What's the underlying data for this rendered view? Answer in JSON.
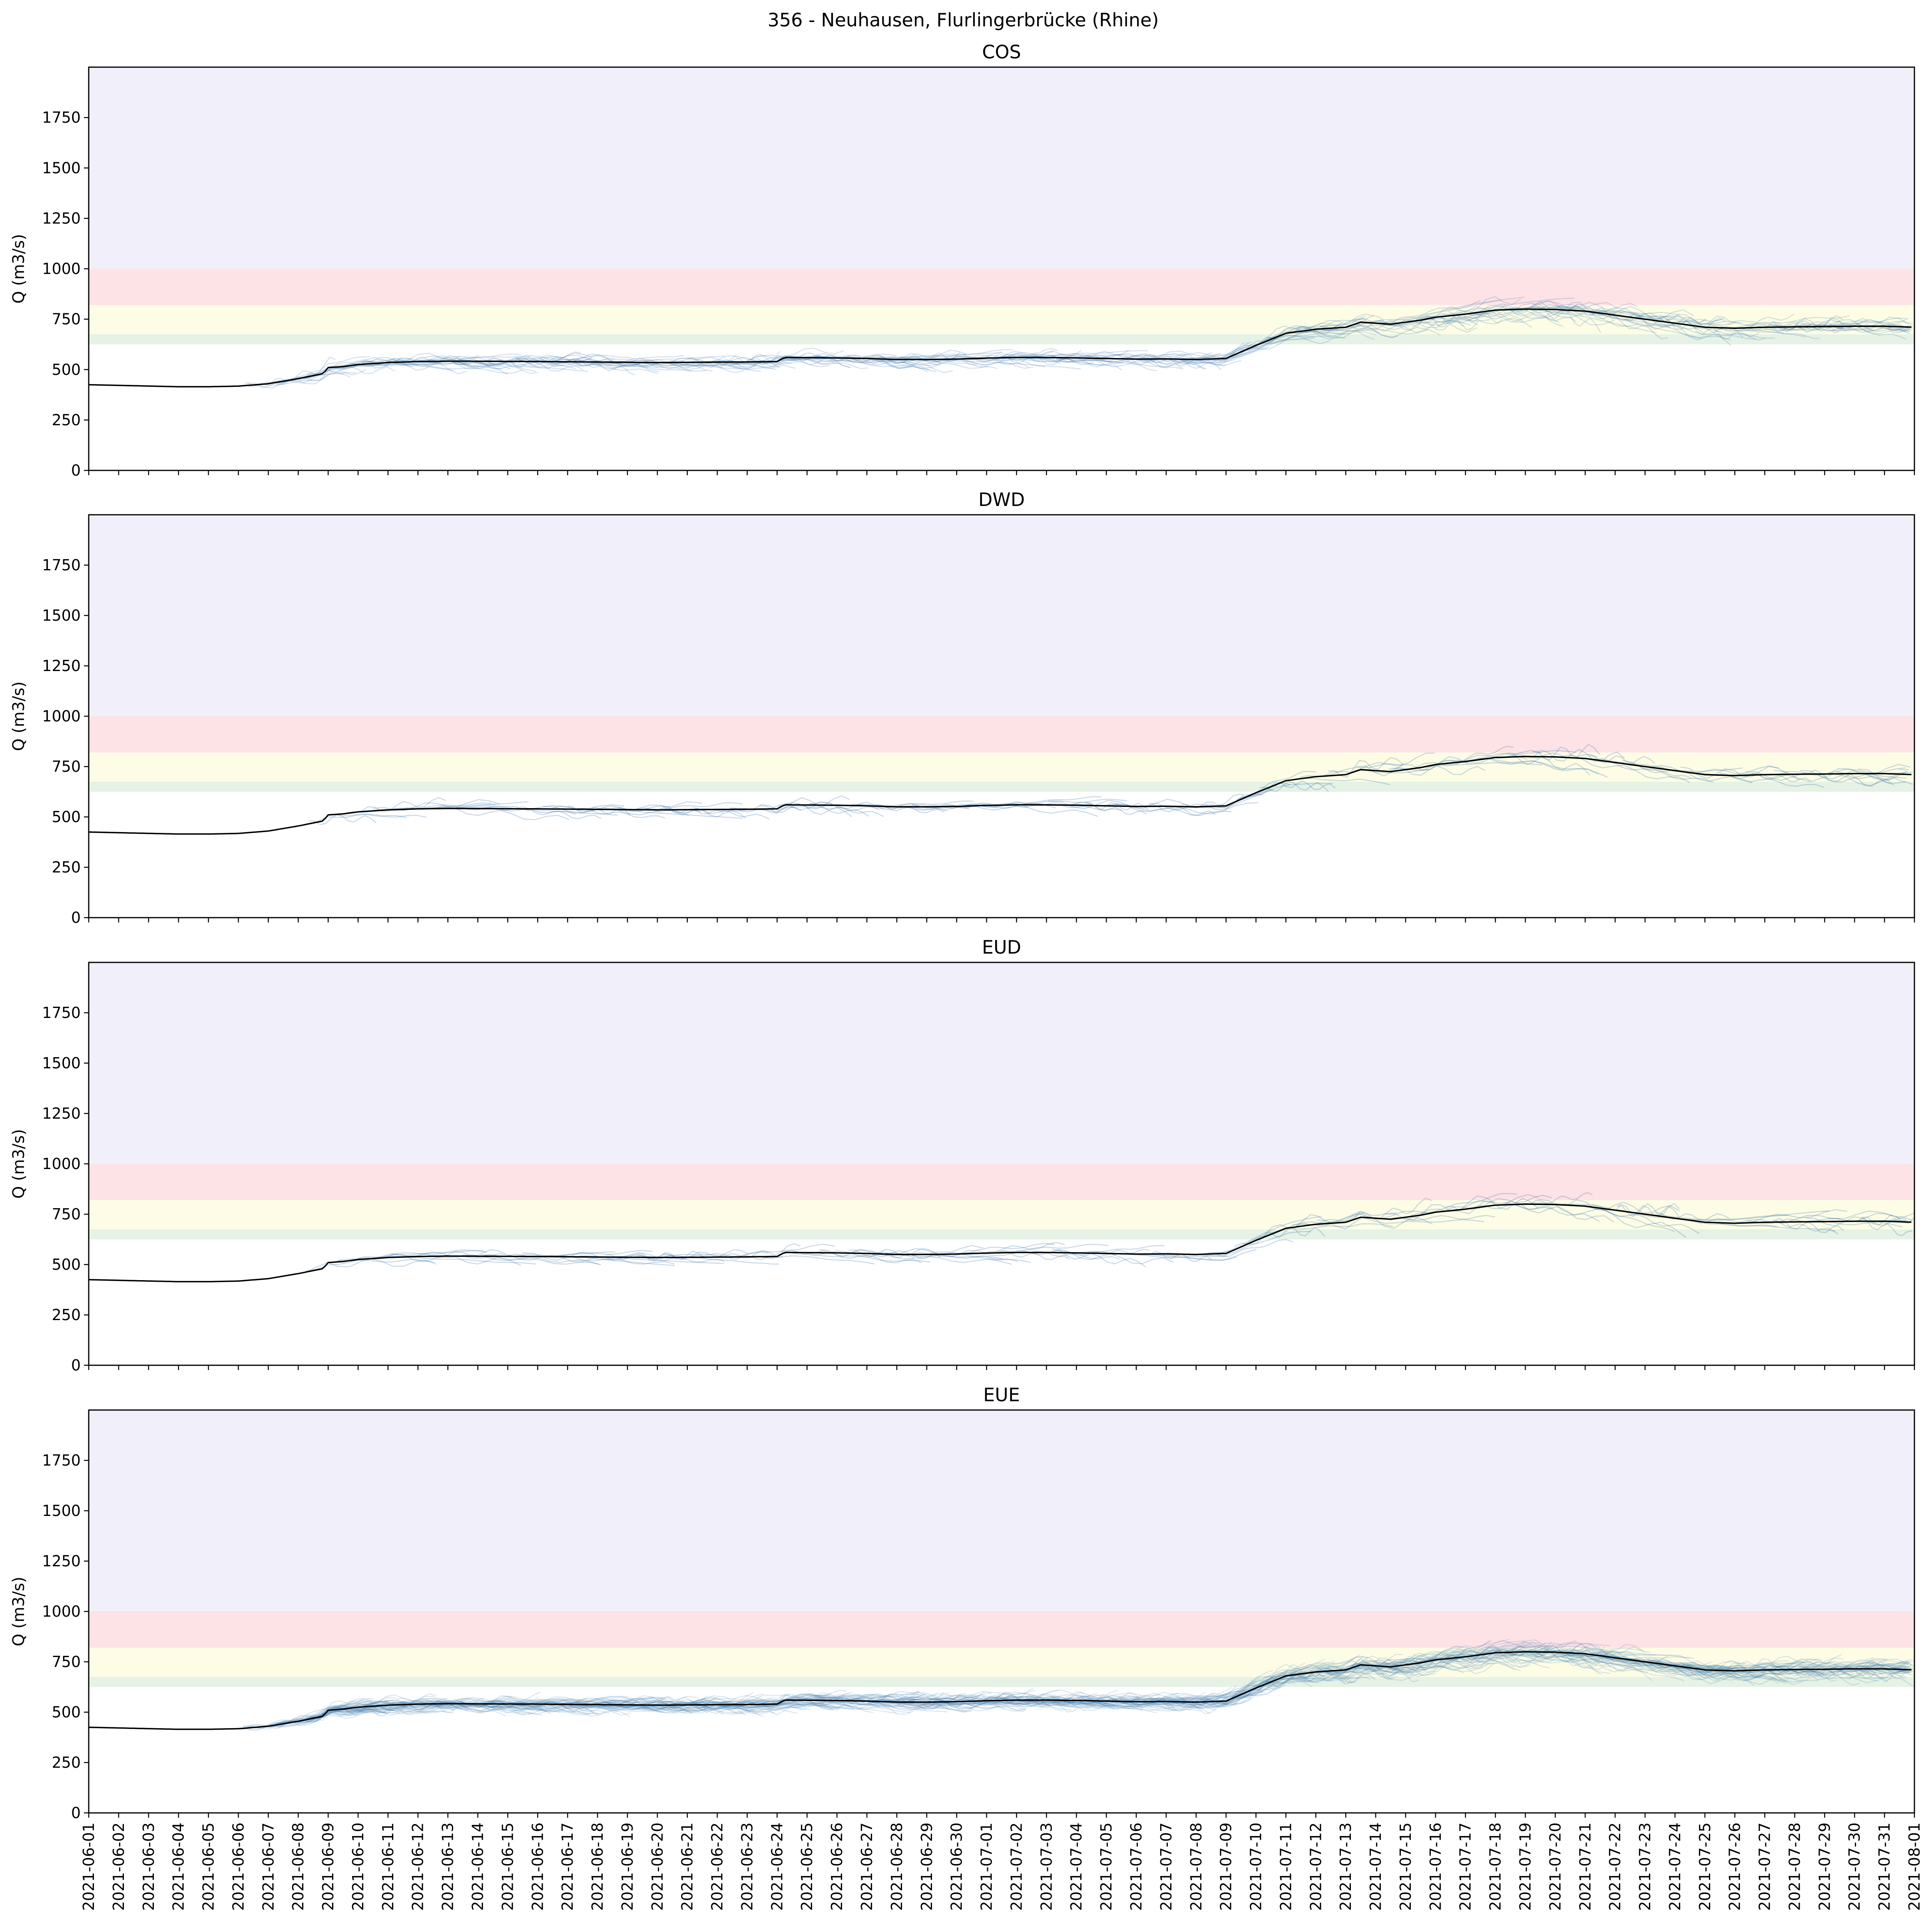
{
  "figure": {
    "title": "356 - Neuhausen, Flurlingerbrücke (Rhine)"
  },
  "colors": {
    "band_purple": "#f1eff9",
    "band_red": "#fde2e6",
    "band_yellow": "#fdfde6",
    "band_green": "#e5f2e5",
    "ensemble": "#3d78ae",
    "observed": "#000000",
    "axes": "#000000"
  },
  "chart_data": [
    {
      "type": "line",
      "panel_title": "COS",
      "ylabel": "Q (m3/s)",
      "ylim": [
        0,
        2000
      ],
      "yticks": [
        0,
        250,
        500,
        750,
        1000,
        1250,
        1500,
        1750
      ],
      "show_xtick_labels": false,
      "ensemble_density": "medium",
      "threshold_bands": [
        {
          "from": 625,
          "to": 675,
          "color": "band_green"
        },
        {
          "from": 675,
          "to": 820,
          "color": "band_yellow"
        },
        {
          "from": 820,
          "to": 1000,
          "color": "band_red"
        },
        {
          "from": 1000,
          "to": 2000,
          "color": "band_purple"
        }
      ]
    },
    {
      "type": "line",
      "panel_title": "DWD",
      "ylabel": "Q (m3/s)",
      "ylim": [
        0,
        2000
      ],
      "yticks": [
        0,
        250,
        500,
        750,
        1000,
        1250,
        1500,
        1750
      ],
      "show_xtick_labels": false,
      "ensemble_density": "sparse",
      "threshold_bands": [
        {
          "from": 625,
          "to": 675,
          "color": "band_green"
        },
        {
          "from": 675,
          "to": 820,
          "color": "band_yellow"
        },
        {
          "from": 820,
          "to": 1000,
          "color": "band_red"
        },
        {
          "from": 1000,
          "to": 2000,
          "color": "band_purple"
        }
      ]
    },
    {
      "type": "line",
      "panel_title": "EUD",
      "ylabel": "Q (m3/s)",
      "ylim": [
        0,
        2000
      ],
      "yticks": [
        0,
        250,
        500,
        750,
        1000,
        1250,
        1500,
        1750
      ],
      "show_xtick_labels": false,
      "ensemble_density": "sparse",
      "threshold_bands": [
        {
          "from": 625,
          "to": 675,
          "color": "band_green"
        },
        {
          "from": 675,
          "to": 820,
          "color": "band_yellow"
        },
        {
          "from": 820,
          "to": 1000,
          "color": "band_red"
        },
        {
          "from": 1000,
          "to": 2000,
          "color": "band_purple"
        }
      ]
    },
    {
      "type": "line",
      "panel_title": "EUE",
      "ylabel": "Q (m3/s)",
      "ylim": [
        0,
        2000
      ],
      "yticks": [
        0,
        250,
        500,
        750,
        1000,
        1250,
        1500,
        1750
      ],
      "show_xtick_labels": true,
      "ensemble_density": "dense",
      "threshold_bands": [
        {
          "from": 625,
          "to": 675,
          "color": "band_green"
        },
        {
          "from": 675,
          "to": 820,
          "color": "band_yellow"
        },
        {
          "from": 820,
          "to": 1000,
          "color": "band_red"
        },
        {
          "from": 1000,
          "to": 2000,
          "color": "band_purple"
        }
      ]
    }
  ],
  "x_axis": {
    "start": "2021-06-01",
    "end": "2021-08-01",
    "tick_labels": [
      "2021-06-01",
      "2021-06-02",
      "2021-06-03",
      "2021-06-04",
      "2021-06-05",
      "2021-06-06",
      "2021-06-07",
      "2021-06-08",
      "2021-06-09",
      "2021-06-10",
      "2021-06-11",
      "2021-06-12",
      "2021-06-13",
      "2021-06-14",
      "2021-06-15",
      "2021-06-16",
      "2021-06-17",
      "2021-06-18",
      "2021-06-19",
      "2021-06-20",
      "2021-06-21",
      "2021-06-22",
      "2021-06-23",
      "2021-06-24",
      "2021-06-25",
      "2021-06-26",
      "2021-06-27",
      "2021-06-28",
      "2021-06-29",
      "2021-06-30",
      "2021-07-01",
      "2021-07-02",
      "2021-07-03",
      "2021-07-04",
      "2021-07-05",
      "2021-07-06",
      "2021-07-07",
      "2021-07-08",
      "2021-07-09",
      "2021-07-10",
      "2021-07-11",
      "2021-07-12",
      "2021-07-13",
      "2021-07-14",
      "2021-07-15",
      "2021-07-16",
      "2021-07-17",
      "2021-07-18",
      "2021-07-19",
      "2021-07-20",
      "2021-07-21",
      "2021-07-22",
      "2021-07-23",
      "2021-07-24",
      "2021-07-25",
      "2021-07-26",
      "2021-07-27",
      "2021-07-28",
      "2021-07-29",
      "2021-07-30",
      "2021-07-31",
      "2021-08-01"
    ]
  },
  "observed": {
    "x_dates": [
      "2021-06-01",
      "2021-06-04",
      "2021-06-05",
      "2021-06-06",
      "2021-06-07",
      "2021-06-08",
      "2021-06-08 20:00",
      "2021-06-09",
      "2021-06-09 12:00",
      "2021-06-10",
      "2021-06-11",
      "2021-06-12",
      "2021-06-13",
      "2021-06-16",
      "2021-06-20",
      "2021-06-23",
      "2021-06-24",
      "2021-06-24 06:00",
      "2021-06-26",
      "2021-06-27",
      "2021-06-28",
      "2021-06-29",
      "2021-06-30",
      "2021-07-01",
      "2021-07-02",
      "2021-07-03",
      "2021-07-04",
      "2021-07-05",
      "2021-07-06",
      "2021-07-07",
      "2021-07-08",
      "2021-07-09",
      "2021-07-10",
      "2021-07-11",
      "2021-07-12",
      "2021-07-13",
      "2021-07-13 12:00",
      "2021-07-14",
      "2021-07-14 12:00",
      "2021-07-15",
      "2021-07-15 12:00",
      "2021-07-16",
      "2021-07-17",
      "2021-07-18",
      "2021-07-19",
      "2021-07-20",
      "2021-07-21",
      "2021-07-22",
      "2021-07-23",
      "2021-07-24",
      "2021-07-25",
      "2021-07-26",
      "2021-07-27",
      "2021-07-28",
      "2021-07-29",
      "2021-07-30",
      "2021-07-31",
      "2021-08-01"
    ],
    "values": [
      425,
      415,
      415,
      418,
      430,
      455,
      480,
      510,
      515,
      525,
      535,
      540,
      542,
      540,
      535,
      538,
      540,
      560,
      558,
      555,
      550,
      550,
      552,
      557,
      560,
      560,
      558,
      555,
      552,
      553,
      550,
      555,
      620,
      680,
      700,
      710,
      735,
      730,
      725,
      735,
      745,
      760,
      775,
      795,
      800,
      798,
      790,
      770,
      750,
      730,
      710,
      705,
      710,
      712,
      713,
      715,
      715,
      710
    ]
  }
}
